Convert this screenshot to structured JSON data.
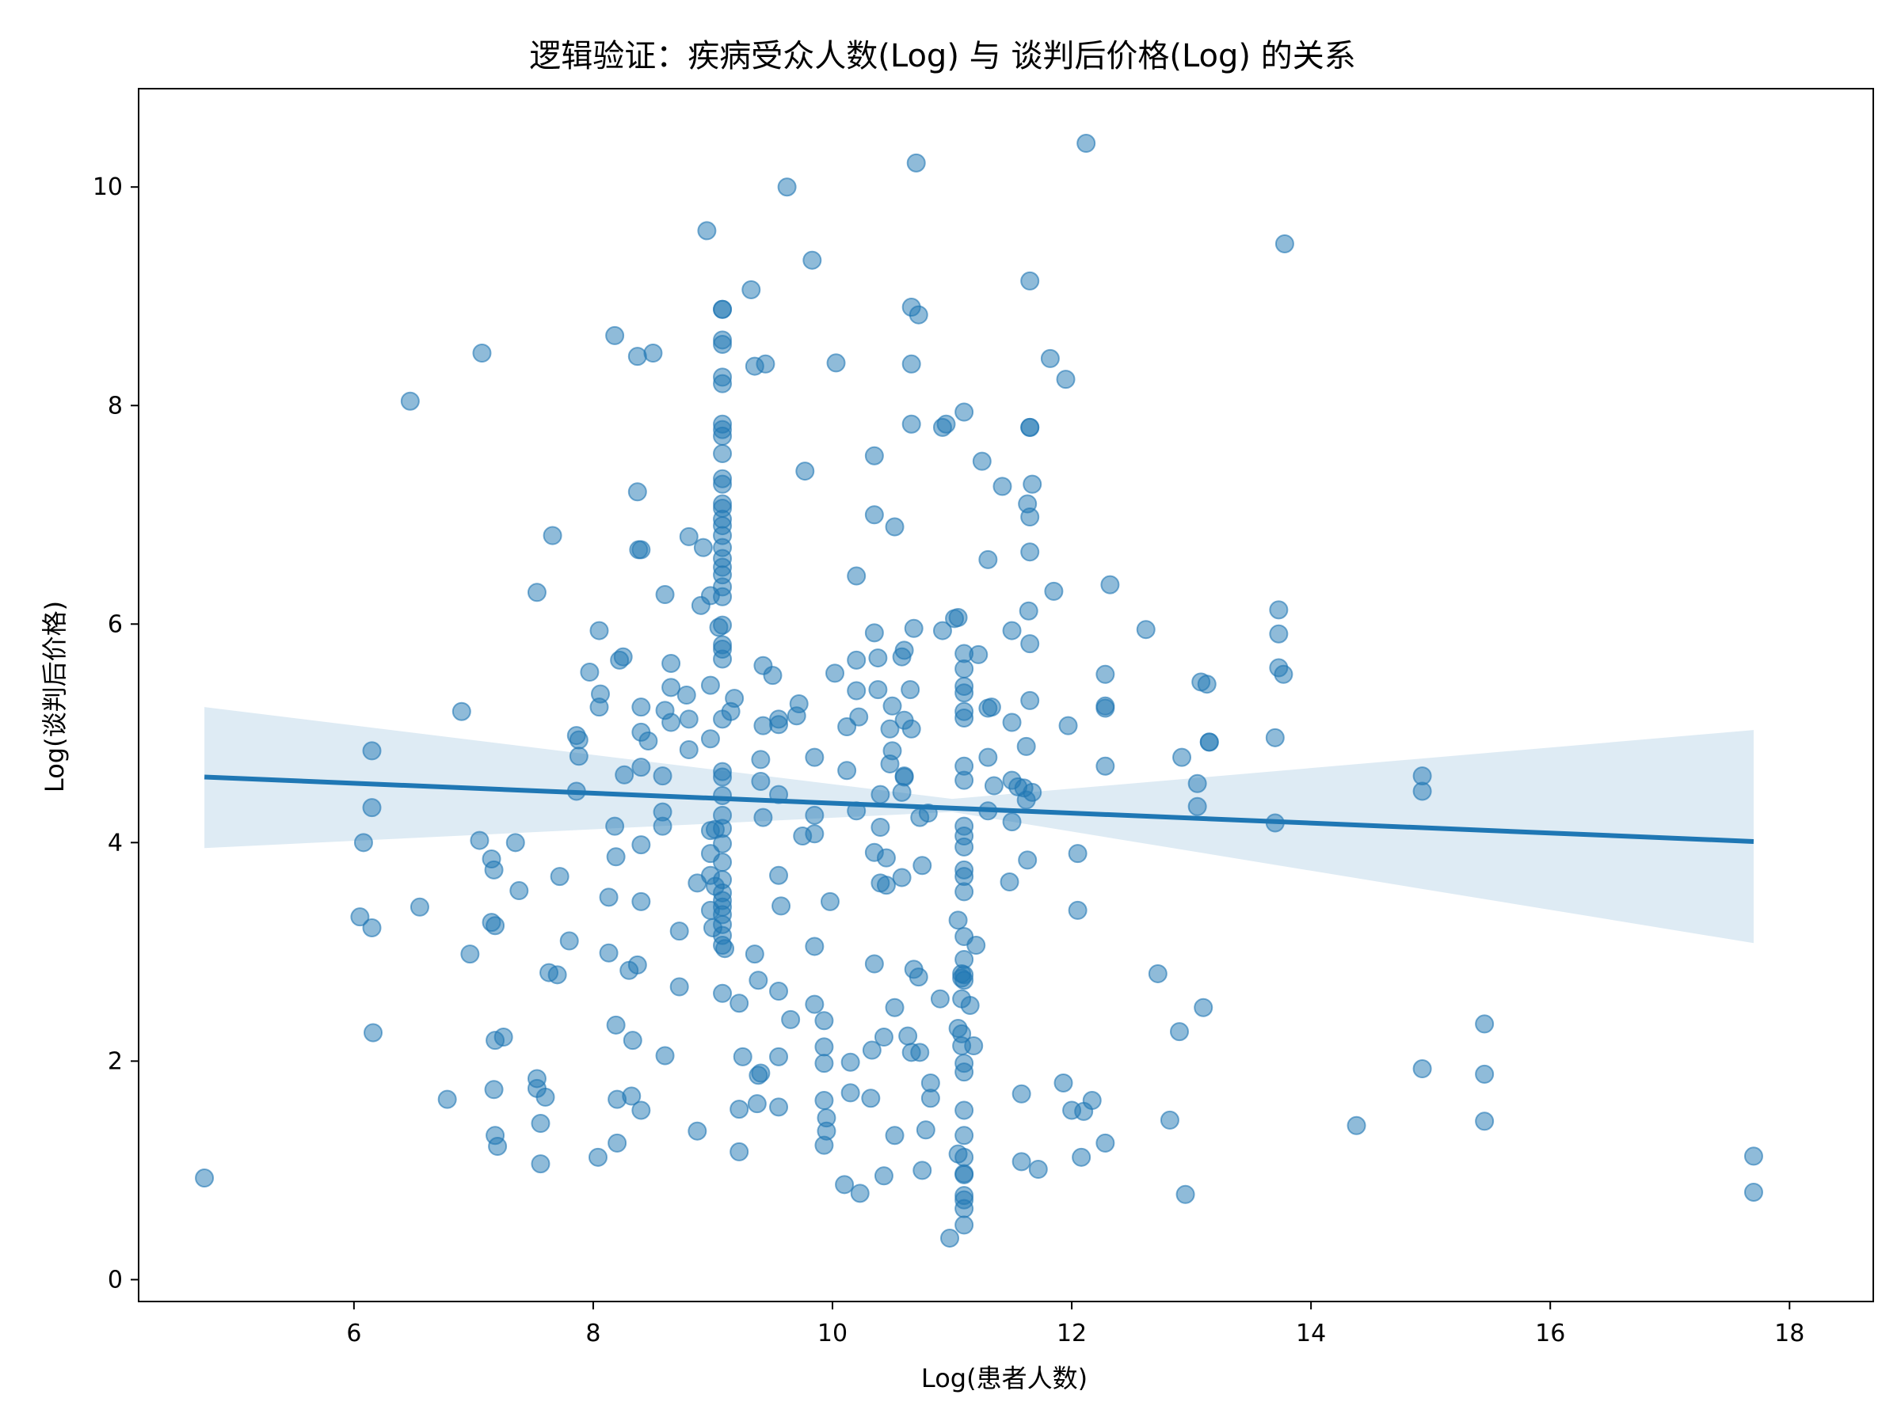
{
  "chart_data": {
    "type": "scatter",
    "title": "逻辑验证：疾病受众人数(Log) 与 谈判后价格(Log) 的关系",
    "xlabel": "Log(患者人数)",
    "ylabel": "Log(谈判后价格)",
    "xlim": [
      4.2,
      18.7
    ],
    "ylim": [
      -0.2,
      10.9
    ],
    "xticks": [
      6,
      8,
      10,
      12,
      14,
      16,
      18
    ],
    "yticks": [
      0,
      2,
      4,
      6,
      8,
      10
    ],
    "grid": false,
    "legend": "none",
    "colors": {
      "points": "#1f77b4",
      "line": "#1f77b4",
      "band": "#1f77b4"
    },
    "regression": {
      "x": [
        4.75,
        17.7
      ],
      "y": [
        4.6,
        4.01
      ],
      "ci_lower": [
        3.95,
        3.08
      ],
      "ci_upper": [
        5.24,
        5.03
      ],
      "ci_mid_x": 11.0,
      "ci_mid": [
        4.28,
        4.4
      ]
    },
    "points": [
      [
        4.75,
        0.93
      ],
      [
        6.05,
        3.32
      ],
      [
        6.08,
        4.0
      ],
      [
        6.15,
        4.84
      ],
      [
        6.15,
        4.32
      ],
      [
        6.15,
        3.22
      ],
      [
        6.16,
        2.26
      ],
      [
        6.47,
        8.04
      ],
      [
        6.55,
        3.41
      ],
      [
        6.78,
        1.65
      ],
      [
        6.9,
        5.2
      ],
      [
        6.97,
        2.98
      ],
      [
        7.05,
        4.02
      ],
      [
        7.07,
        8.48
      ],
      [
        7.15,
        3.85
      ],
      [
        7.15,
        3.27
      ],
      [
        7.17,
        3.75
      ],
      [
        7.18,
        2.19
      ],
      [
        7.17,
        1.74
      ],
      [
        7.18,
        1.32
      ],
      [
        7.2,
        1.22
      ],
      [
        7.18,
        3.24
      ],
      [
        7.25,
        2.22
      ],
      [
        7.35,
        4.0
      ],
      [
        7.38,
        3.56
      ],
      [
        7.53,
        1.75
      ],
      [
        7.53,
        1.84
      ],
      [
        7.56,
        1.43
      ],
      [
        7.56,
        1.06
      ],
      [
        7.53,
        6.29
      ],
      [
        7.6,
        1.67
      ],
      [
        7.63,
        2.81
      ],
      [
        7.66,
        6.81
      ],
      [
        7.7,
        2.79
      ],
      [
        7.72,
        3.69
      ],
      [
        7.8,
        3.1
      ],
      [
        7.86,
        4.98
      ],
      [
        7.88,
        4.94
      ],
      [
        7.88,
        4.79
      ],
      [
        7.86,
        4.47
      ],
      [
        7.97,
        5.56
      ],
      [
        8.04,
        1.12
      ],
      [
        8.05,
        5.94
      ],
      [
        8.06,
        5.36
      ],
      [
        8.05,
        5.24
      ],
      [
        8.13,
        3.5
      ],
      [
        8.13,
        2.99
      ],
      [
        8.18,
        8.64
      ],
      [
        8.18,
        4.15
      ],
      [
        8.19,
        3.87
      ],
      [
        8.19,
        2.33
      ],
      [
        8.2,
        1.65
      ],
      [
        8.2,
        1.25
      ],
      [
        8.22,
        5.67
      ],
      [
        8.25,
        5.7
      ],
      [
        8.26,
        4.62
      ],
      [
        8.3,
        2.83
      ],
      [
        8.32,
        1.68
      ],
      [
        8.33,
        2.19
      ],
      [
        8.37,
        2.88
      ],
      [
        8.37,
        8.45
      ],
      [
        8.37,
        7.21
      ],
      [
        8.38,
        6.68
      ],
      [
        8.4,
        6.68
      ],
      [
        8.4,
        5.24
      ],
      [
        8.4,
        5.01
      ],
      [
        8.4,
        4.69
      ],
      [
        8.4,
        3.98
      ],
      [
        8.4,
        3.46
      ],
      [
        8.4,
        1.55
      ],
      [
        8.46,
        4.93
      ],
      [
        8.5,
        8.48
      ],
      [
        8.58,
        4.61
      ],
      [
        8.58,
        4.28
      ],
      [
        8.58,
        4.15
      ],
      [
        8.6,
        2.05
      ],
      [
        8.6,
        5.21
      ],
      [
        8.6,
        6.27
      ],
      [
        8.65,
        5.42
      ],
      [
        8.65,
        5.1
      ],
      [
        8.65,
        5.64
      ],
      [
        8.72,
        3.19
      ],
      [
        8.72,
        2.68
      ],
      [
        8.78,
        5.35
      ],
      [
        8.8,
        6.8
      ],
      [
        8.8,
        5.13
      ],
      [
        8.8,
        4.85
      ],
      [
        8.87,
        3.63
      ],
      [
        8.87,
        1.36
      ],
      [
        8.9,
        6.17
      ],
      [
        8.92,
        6.7
      ],
      [
        8.95,
        9.6
      ],
      [
        8.98,
        6.26
      ],
      [
        8.98,
        5.44
      ],
      [
        8.98,
        4.95
      ],
      [
        8.98,
        4.11
      ],
      [
        8.98,
        3.9
      ],
      [
        8.98,
        3.7
      ],
      [
        8.98,
        3.38
      ],
      [
        9.0,
        3.22
      ],
      [
        9.02,
        4.12
      ],
      [
        9.02,
        3.6
      ],
      [
        9.05,
        5.97
      ],
      [
        9.08,
        8.88
      ],
      [
        9.08,
        8.88
      ],
      [
        9.08,
        8.6
      ],
      [
        9.08,
        8.56
      ],
      [
        9.08,
        8.26
      ],
      [
        9.08,
        8.2
      ],
      [
        9.08,
        7.83
      ],
      [
        9.08,
        7.78
      ],
      [
        9.08,
        7.72
      ],
      [
        9.08,
        7.56
      ],
      [
        9.08,
        7.33
      ],
      [
        9.08,
        7.28
      ],
      [
        9.08,
        7.1
      ],
      [
        9.08,
        7.06
      ],
      [
        9.08,
        6.96
      ],
      [
        9.08,
        6.9
      ],
      [
        9.08,
        6.81
      ],
      [
        9.08,
        6.7
      ],
      [
        9.08,
        6.6
      ],
      [
        9.08,
        6.52
      ],
      [
        9.08,
        6.45
      ],
      [
        9.08,
        6.34
      ],
      [
        9.08,
        6.25
      ],
      [
        9.08,
        5.99
      ],
      [
        9.08,
        5.81
      ],
      [
        9.08,
        5.77
      ],
      [
        9.08,
        5.68
      ],
      [
        9.08,
        5.13
      ],
      [
        9.08,
        4.65
      ],
      [
        9.08,
        4.6
      ],
      [
        9.08,
        4.43
      ],
      [
        9.08,
        4.25
      ],
      [
        9.08,
        4.13
      ],
      [
        9.08,
        3.99
      ],
      [
        9.08,
        3.82
      ],
      [
        9.08,
        3.66
      ],
      [
        9.08,
        3.54
      ],
      [
        9.08,
        3.47
      ],
      [
        9.08,
        3.41
      ],
      [
        9.08,
        3.34
      ],
      [
        9.08,
        3.25
      ],
      [
        9.08,
        3.15
      ],
      [
        9.08,
        3.06
      ],
      [
        9.08,
        2.62
      ],
      [
        9.1,
        3.03
      ],
      [
        9.15,
        5.2
      ],
      [
        9.18,
        5.32
      ],
      [
        9.22,
        2.53
      ],
      [
        9.22,
        1.56
      ],
      [
        9.22,
        1.17
      ],
      [
        9.25,
        2.04
      ],
      [
        9.32,
        9.06
      ],
      [
        9.35,
        8.36
      ],
      [
        9.35,
        2.98
      ],
      [
        9.37,
        1.61
      ],
      [
        9.38,
        2.74
      ],
      [
        9.38,
        1.87
      ],
      [
        9.4,
        1.89
      ],
      [
        9.4,
        4.56
      ],
      [
        9.4,
        4.76
      ],
      [
        9.42,
        5.07
      ],
      [
        9.42,
        5.62
      ],
      [
        9.42,
        4.23
      ],
      [
        9.44,
        8.38
      ],
      [
        9.5,
        5.53
      ],
      [
        9.55,
        5.13
      ],
      [
        9.55,
        5.08
      ],
      [
        9.55,
        4.44
      ],
      [
        9.55,
        3.7
      ],
      [
        9.57,
        3.42
      ],
      [
        9.55,
        2.64
      ],
      [
        9.55,
        2.04
      ],
      [
        9.55,
        1.58
      ],
      [
        9.62,
        10.0
      ],
      [
        9.65,
        2.38
      ],
      [
        9.7,
        5.16
      ],
      [
        9.72,
        5.27
      ],
      [
        9.75,
        4.06
      ],
      [
        9.77,
        7.4
      ],
      [
        9.83,
        9.33
      ],
      [
        9.85,
        4.78
      ],
      [
        9.85,
        4.25
      ],
      [
        9.85,
        4.08
      ],
      [
        9.85,
        3.05
      ],
      [
        9.85,
        2.52
      ],
      [
        9.93,
        2.37
      ],
      [
        9.93,
        2.13
      ],
      [
        9.93,
        1.98
      ],
      [
        9.93,
        1.64
      ],
      [
        9.93,
        1.23
      ],
      [
        9.95,
        1.48
      ],
      [
        9.95,
        1.36
      ],
      [
        9.98,
        3.46
      ],
      [
        10.02,
        5.55
      ],
      [
        10.03,
        8.39
      ],
      [
        10.2,
        5.67
      ],
      [
        10.1,
        0.87
      ],
      [
        10.12,
        5.06
      ],
      [
        10.12,
        4.66
      ],
      [
        10.15,
        1.99
      ],
      [
        10.15,
        1.71
      ],
      [
        10.2,
        6.44
      ],
      [
        10.2,
        4.29
      ],
      [
        10.2,
        5.39
      ],
      [
        10.22,
        5.15
      ],
      [
        10.23,
        0.79
      ],
      [
        10.32,
        1.66
      ],
      [
        10.33,
        2.1
      ],
      [
        10.35,
        7.54
      ],
      [
        10.35,
        7.0
      ],
      [
        10.35,
        5.92
      ],
      [
        10.35,
        3.91
      ],
      [
        10.35,
        2.89
      ],
      [
        10.38,
        5.4
      ],
      [
        10.38,
        5.69
      ],
      [
        10.4,
        4.44
      ],
      [
        10.4,
        4.14
      ],
      [
        10.4,
        3.63
      ],
      [
        10.43,
        0.95
      ],
      [
        10.43,
        2.22
      ],
      [
        10.45,
        3.86
      ],
      [
        10.45,
        3.61
      ],
      [
        10.48,
        5.04
      ],
      [
        10.48,
        4.72
      ],
      [
        10.5,
        5.25
      ],
      [
        10.5,
        4.84
      ],
      [
        10.52,
        6.89
      ],
      [
        10.52,
        2.49
      ],
      [
        10.52,
        1.32
      ],
      [
        10.58,
        4.46
      ],
      [
        10.58,
        3.68
      ],
      [
        10.58,
        5.7
      ],
      [
        10.6,
        4.6
      ],
      [
        10.6,
        4.61
      ],
      [
        10.6,
        5.76
      ],
      [
        10.6,
        5.12
      ],
      [
        10.63,
        2.23
      ],
      [
        10.65,
        5.4
      ],
      [
        10.66,
        8.9
      ],
      [
        10.66,
        8.38
      ],
      [
        10.66,
        7.83
      ],
      [
        10.66,
        5.04
      ],
      [
        10.66,
        2.08
      ],
      [
        10.68,
        5.96
      ],
      [
        10.68,
        2.84
      ],
      [
        10.7,
        10.22
      ],
      [
        10.72,
        8.83
      ],
      [
        10.72,
        2.77
      ],
      [
        10.73,
        4.23
      ],
      [
        10.73,
        2.08
      ],
      [
        10.75,
        1.0
      ],
      [
        10.75,
        3.79
      ],
      [
        10.78,
        1.37
      ],
      [
        10.8,
        4.27
      ],
      [
        10.82,
        1.8
      ],
      [
        10.82,
        1.66
      ],
      [
        10.9,
        2.57
      ],
      [
        10.92,
        5.94
      ],
      [
        10.92,
        7.8
      ],
      [
        10.95,
        7.83
      ],
      [
        10.98,
        0.38
      ],
      [
        11.02,
        6.05
      ],
      [
        11.05,
        2.3
      ],
      [
        11.05,
        1.15
      ],
      [
        11.05,
        6.06
      ],
      [
        11.05,
        3.29
      ],
      [
        11.08,
        2.8
      ],
      [
        11.08,
        2.76
      ],
      [
        11.08,
        2.57
      ],
      [
        11.08,
        2.25
      ],
      [
        11.08,
        2.14
      ],
      [
        11.1,
        7.94
      ],
      [
        11.1,
        5.73
      ],
      [
        11.1,
        5.59
      ],
      [
        11.1,
        5.43
      ],
      [
        11.1,
        5.37
      ],
      [
        11.1,
        5.2
      ],
      [
        11.1,
        5.14
      ],
      [
        11.1,
        4.7
      ],
      [
        11.1,
        4.57
      ],
      [
        11.1,
        4.15
      ],
      [
        11.1,
        4.06
      ],
      [
        11.1,
        3.96
      ],
      [
        11.1,
        3.75
      ],
      [
        11.1,
        3.69
      ],
      [
        11.1,
        3.55
      ],
      [
        11.1,
        3.14
      ],
      [
        11.1,
        2.93
      ],
      [
        11.1,
        2.79
      ],
      [
        11.1,
        2.74
      ],
      [
        11.1,
        1.98
      ],
      [
        11.1,
        1.9
      ],
      [
        11.1,
        1.55
      ],
      [
        11.1,
        1.32
      ],
      [
        11.1,
        1.12
      ],
      [
        11.1,
        0.97
      ],
      [
        11.1,
        0.96
      ],
      [
        11.1,
        0.77
      ],
      [
        11.1,
        0.73
      ],
      [
        11.1,
        0.65
      ],
      [
        11.1,
        0.5
      ],
      [
        11.15,
        2.51
      ],
      [
        11.18,
        2.14
      ],
      [
        11.2,
        3.06
      ],
      [
        11.22,
        5.72
      ],
      [
        11.25,
        7.49
      ],
      [
        11.3,
        6.59
      ],
      [
        11.3,
        5.23
      ],
      [
        11.3,
        4.78
      ],
      [
        11.3,
        4.29
      ],
      [
        11.33,
        5.24
      ],
      [
        11.35,
        4.52
      ],
      [
        11.42,
        7.26
      ],
      [
        11.48,
        3.64
      ],
      [
        11.5,
        5.94
      ],
      [
        11.5,
        5.1
      ],
      [
        11.5,
        4.57
      ],
      [
        11.5,
        4.19
      ],
      [
        11.55,
        4.51
      ],
      [
        11.58,
        1.7
      ],
      [
        11.58,
        1.08
      ],
      [
        11.6,
        4.5
      ],
      [
        11.62,
        4.39
      ],
      [
        11.62,
        4.88
      ],
      [
        11.63,
        7.1
      ],
      [
        11.64,
        6.12
      ],
      [
        11.65,
        9.14
      ],
      [
        11.65,
        7.8
      ],
      [
        11.65,
        7.8
      ],
      [
        11.65,
        6.98
      ],
      [
        11.65,
        6.66
      ],
      [
        11.65,
        5.82
      ],
      [
        11.65,
        5.3
      ],
      [
        11.67,
        7.28
      ],
      [
        11.67,
        4.46
      ],
      [
        11.63,
        3.84
      ],
      [
        11.72,
        1.01
      ],
      [
        11.82,
        8.43
      ],
      [
        11.85,
        6.3
      ],
      [
        11.93,
        1.8
      ],
      [
        11.95,
        8.24
      ],
      [
        11.97,
        5.07
      ],
      [
        12.0,
        1.55
      ],
      [
        12.05,
        3.9
      ],
      [
        12.05,
        3.38
      ],
      [
        12.08,
        1.12
      ],
      [
        12.1,
        1.54
      ],
      [
        12.12,
        10.4
      ],
      [
        12.17,
        1.64
      ],
      [
        12.28,
        5.54
      ],
      [
        12.28,
        5.23
      ],
      [
        12.28,
        5.25
      ],
      [
        12.28,
        4.7
      ],
      [
        12.28,
        1.25
      ],
      [
        12.32,
        6.36
      ],
      [
        12.62,
        5.95
      ],
      [
        12.72,
        2.8
      ],
      [
        12.82,
        1.46
      ],
      [
        12.9,
        2.27
      ],
      [
        12.92,
        4.78
      ],
      [
        12.95,
        0.78
      ],
      [
        13.05,
        4.54
      ],
      [
        13.05,
        4.33
      ],
      [
        13.08,
        5.47
      ],
      [
        13.1,
        2.49
      ],
      [
        13.13,
        5.45
      ],
      [
        13.15,
        4.92
      ],
      [
        13.15,
        4.92
      ],
      [
        13.7,
        4.96
      ],
      [
        13.7,
        4.18
      ],
      [
        13.73,
        5.91
      ],
      [
        13.73,
        6.13
      ],
      [
        13.73,
        5.6
      ],
      [
        13.77,
        5.54
      ],
      [
        13.78,
        9.48
      ],
      [
        14.38,
        1.41
      ],
      [
        14.93,
        4.61
      ],
      [
        14.93,
        4.47
      ],
      [
        14.93,
        1.93
      ],
      [
        15.45,
        2.34
      ],
      [
        15.45,
        1.88
      ],
      [
        15.45,
        1.45
      ],
      [
        17.7,
        1.13
      ],
      [
        17.7,
        0.8
      ]
    ]
  }
}
